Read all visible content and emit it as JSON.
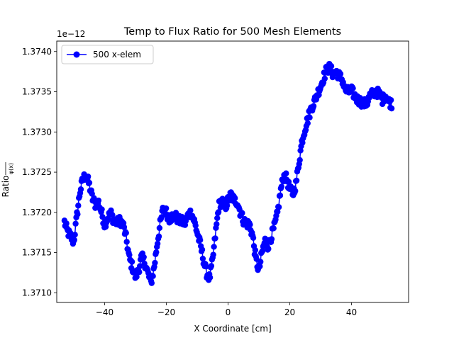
{
  "chart_data": {
    "type": "line",
    "title": "Temp to Flux Ratio for 500 Mesh Elements",
    "xlabel": "X Coordinate [cm]",
    "ylabel_main": "Ratio",
    "ylabel_fraction": "φ(x)",
    "offset_text": "1e−12",
    "x_ticks": [
      -40,
      -20,
      0,
      20,
      40
    ],
    "x_tick_labels": [
      "−40",
      "−20",
      "0",
      "20",
      "40"
    ],
    "y_ticks": [
      1.371,
      1.3715,
      1.372,
      1.3725,
      1.373,
      1.3735,
      1.374
    ],
    "y_tick_labels": [
      "1.3710",
      "1.3715",
      "1.3720",
      "1.3725",
      "1.3730",
      "1.3735",
      "1.3740"
    ],
    "xlim": [
      -55.5,
      58.5
    ],
    "ylim": [
      1.37088,
      1.37413
    ],
    "grid": false,
    "legend_position": "upper left",
    "series": [
      {
        "name": "500 x-elem",
        "color": "#0000ff",
        "marker": "circle",
        "anchors": [
          [
            -53,
            1.37188
          ],
          [
            -52,
            1.37176
          ],
          [
            -51,
            1.3717
          ],
          [
            -50,
            1.37163
          ],
          [
            -49,
            1.37195
          ],
          [
            -48,
            1.37225
          ],
          [
            -47,
            1.37242
          ],
          [
            -46,
            1.37246
          ],
          [
            -45,
            1.37235
          ],
          [
            -44,
            1.37218
          ],
          [
            -43,
            1.3721
          ],
          [
            -42,
            1.37213
          ],
          [
            -41,
            1.372
          ],
          [
            -40,
            1.37185
          ],
          [
            -39,
            1.37193
          ],
          [
            -38,
            1.37199
          ],
          [
            -37,
            1.3719
          ],
          [
            -36,
            1.37187
          ],
          [
            -35,
            1.3719
          ],
          [
            -34,
            1.37185
          ],
          [
            -33,
            1.37168
          ],
          [
            -32,
            1.37143
          ],
          [
            -31,
            1.37132
          ],
          [
            -30,
            1.3712
          ],
          [
            -29,
            1.37128
          ],
          [
            -28,
            1.37145
          ],
          [
            -27,
            1.37138
          ],
          [
            -26,
            1.37125
          ],
          [
            -25,
            1.37112
          ],
          [
            -24,
            1.3713
          ],
          [
            -23,
            1.3716
          ],
          [
            -22,
            1.37185
          ],
          [
            -21,
            1.37205
          ],
          [
            -20,
            1.372
          ],
          [
            -19,
            1.37192
          ],
          [
            -18,
            1.37195
          ],
          [
            -17,
            1.37195
          ],
          [
            -16,
            1.3719
          ],
          [
            -15,
            1.37189
          ],
          [
            -14,
            1.37186
          ],
          [
            -13,
            1.37196
          ],
          [
            -12,
            1.372
          ],
          [
            -11,
            1.3719
          ],
          [
            -10,
            1.37175
          ],
          [
            -9,
            1.3716
          ],
          [
            -8,
            1.37142
          ],
          [
            -7,
            1.37125
          ],
          [
            -6,
            1.37118
          ],
          [
            -5,
            1.3714
          ],
          [
            -4,
            1.37175
          ],
          [
            -3,
            1.37208
          ],
          [
            -2,
            1.37215
          ],
          [
            -1,
            1.37205
          ],
          [
            0,
            1.37215
          ],
          [
            1,
            1.37222
          ],
          [
            2,
            1.37215
          ],
          [
            3,
            1.37213
          ],
          [
            4,
            1.372
          ],
          [
            5,
            1.3719
          ],
          [
            6,
            1.37186
          ],
          [
            7,
            1.37185
          ],
          [
            8,
            1.3717
          ],
          [
            9,
            1.37142
          ],
          [
            10,
            1.37127
          ],
          [
            11,
            1.3715
          ],
          [
            12,
            1.37165
          ],
          [
            13,
            1.37158
          ],
          [
            14,
            1.3717
          ],
          [
            15,
            1.37182
          ],
          [
            16,
            1.37198
          ],
          [
            17,
            1.37226
          ],
          [
            18,
            1.37245
          ],
          [
            19,
            1.37242
          ],
          [
            20,
            1.37228
          ],
          [
            21,
            1.37223
          ],
          [
            22,
            1.37235
          ],
          [
            23,
            1.37263
          ],
          [
            24,
            1.3729
          ],
          [
            25,
            1.37305
          ],
          [
            26,
            1.37318
          ],
          [
            27,
            1.3733
          ],
          [
            28,
            1.37338
          ],
          [
            29,
            1.37348
          ],
          [
            30,
            1.37357
          ],
          [
            31,
            1.37368
          ],
          [
            32,
            1.37378
          ],
          [
            33,
            1.3738
          ],
          [
            34,
            1.37372
          ],
          [
            35,
            1.37375
          ],
          [
            36,
            1.3737
          ],
          [
            37,
            1.37365
          ],
          [
            38,
            1.37352
          ],
          [
            39,
            1.3735
          ],
          [
            40,
            1.37352
          ],
          [
            41,
            1.37345
          ],
          [
            42,
            1.3734
          ],
          [
            43,
            1.37338
          ],
          [
            44,
            1.37335
          ],
          [
            45,
            1.37336
          ],
          [
            46,
            1.37345
          ],
          [
            47,
            1.37348
          ],
          [
            48,
            1.3735
          ],
          [
            49,
            1.37347
          ],
          [
            50,
            1.3734
          ],
          [
            51,
            1.37346
          ],
          [
            52,
            1.37338
          ],
          [
            53,
            1.37335
          ]
        ]
      }
    ]
  }
}
